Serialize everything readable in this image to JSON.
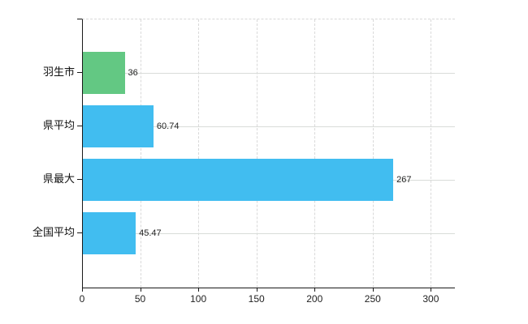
{
  "chart_data": {
    "type": "bar",
    "orientation": "horizontal",
    "title": "",
    "xlabel": "",
    "ylabel": "",
    "categories": [
      "羽生市",
      "県平均",
      "県最大",
      "全国平均"
    ],
    "values": [
      36,
      60.74,
      267,
      45.47
    ],
    "value_labels": [
      "36",
      "60.74",
      "267",
      "45.47"
    ],
    "bar_colors": [
      "#63c883",
      "#41bdf0",
      "#41bdf0",
      "#41bdf0"
    ],
    "x_ticks": [
      0,
      50,
      100,
      150,
      200,
      250,
      300
    ],
    "x_tick_labels": [
      "0",
      "50",
      "100",
      "150",
      "200",
      "250",
      "300"
    ],
    "xlim": [
      0,
      320
    ],
    "grid": true,
    "legend_position": "none"
  },
  "colors": {
    "highlight_bar": "#63c883",
    "default_bar": "#41bdf0",
    "axis": "#1a1a1a",
    "gridline": "#d9d9d9",
    "text": "#222222",
    "background": "#ffffff"
  }
}
